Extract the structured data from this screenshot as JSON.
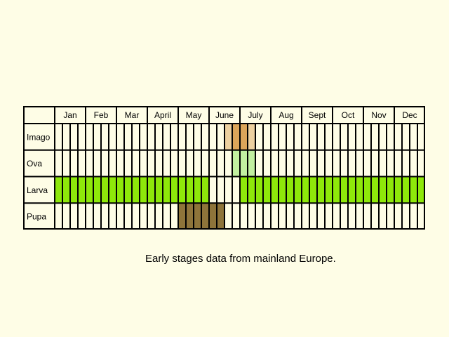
{
  "calendar": {
    "months": [
      "Jan",
      "Feb",
      "Mar",
      "April",
      "May",
      "June",
      "July",
      "Aug",
      "Sept",
      "Oct",
      "Nov",
      "Dec"
    ],
    "stages": [
      {
        "label": "Imago",
        "color": "#dba55a",
        "fill": [
          0,
          0,
          0,
          0,
          0,
          0,
          0,
          0,
          0,
          0,
          0,
          0,
          0,
          0,
          0,
          0,
          0,
          0,
          0,
          0,
          0,
          0,
          0.5,
          1,
          1,
          0.5,
          0,
          0,
          0,
          0,
          0,
          0,
          0,
          0,
          0,
          0,
          0,
          0,
          0,
          0,
          0,
          0,
          0,
          0,
          0,
          0,
          0,
          0
        ]
      },
      {
        "label": "Ova",
        "color": "#c2f0a0",
        "fill": [
          0,
          0,
          0,
          0,
          0,
          0,
          0,
          0,
          0,
          0,
          0,
          0,
          0,
          0,
          0,
          0,
          0,
          0,
          0,
          0,
          0,
          0,
          0,
          1,
          1,
          1,
          0,
          0,
          0,
          0,
          0,
          0,
          0,
          0,
          0,
          0,
          0,
          0,
          0,
          0,
          0,
          0,
          0,
          0,
          0,
          0,
          0,
          0
        ]
      },
      {
        "label": "Larva",
        "color": "#8ee80a",
        "fill": [
          1,
          1,
          1,
          1,
          1,
          1,
          1,
          1,
          1,
          1,
          1,
          1,
          1,
          1,
          1,
          1,
          1,
          1,
          1,
          1,
          0,
          0,
          0,
          0,
          1,
          1,
          1,
          1,
          1,
          1,
          1,
          1,
          1,
          1,
          1,
          1,
          1,
          1,
          1,
          1,
          1,
          1,
          1,
          1,
          1,
          1,
          1,
          1
        ]
      },
      {
        "label": "Pupa",
        "color": "#8e743a",
        "fill": [
          0,
          0,
          0,
          0,
          0,
          0,
          0,
          0,
          0,
          0,
          0,
          0,
          0,
          0,
          0,
          0,
          1,
          1,
          1,
          1,
          1,
          1,
          0,
          0,
          0,
          0,
          0,
          0,
          0,
          0,
          0,
          0,
          0,
          0,
          0,
          0,
          0,
          0,
          0,
          0,
          0,
          0,
          0,
          0,
          0,
          0,
          0,
          0
        ]
      }
    ]
  },
  "caption": "Early stages data from mainland Europe."
}
